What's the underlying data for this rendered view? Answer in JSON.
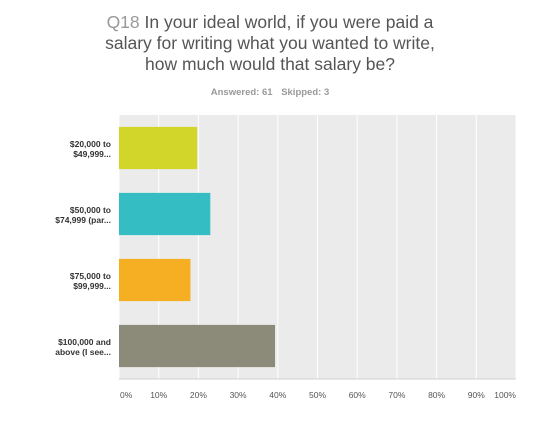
{
  "question": {
    "number": "Q18",
    "title_lines": [
      "In your ideal world, if you were paid a",
      "salary for writing what you wanted to write,",
      "how much would that salary be?"
    ]
  },
  "summary": {
    "answered": "Answered: 61",
    "skipped": "Skipped: 3"
  },
  "chart_data": {
    "type": "bar",
    "orientation": "horizontal",
    "categories": [
      [
        "$20,000 to",
        "$49,999..."
      ],
      [
        "$50,000 to",
        "$74,999 (par..."
      ],
      [
        "$75,000 to",
        "$99,999..."
      ],
      [
        "$100,000 and",
        "above (I see..."
      ]
    ],
    "values": [
      19.7,
      23.0,
      18.0,
      39.3
    ],
    "colors": [
      "#d2d52a",
      "#35bdc4",
      "#f6ae22",
      "#8c8b7a"
    ],
    "xlim": [
      0,
      100
    ],
    "xticks": [
      0,
      10,
      20,
      30,
      40,
      50,
      60,
      70,
      80,
      90,
      100
    ],
    "xtick_labels": [
      "0%",
      "10%",
      "20%",
      "30%",
      "40%",
      "50%",
      "60%",
      "70%",
      "80%",
      "90%",
      "100%"
    ],
    "grid": true,
    "legend": "none",
    "title": "",
    "xlabel": "",
    "ylabel": "",
    "plot_background": "#ebebeb"
  }
}
